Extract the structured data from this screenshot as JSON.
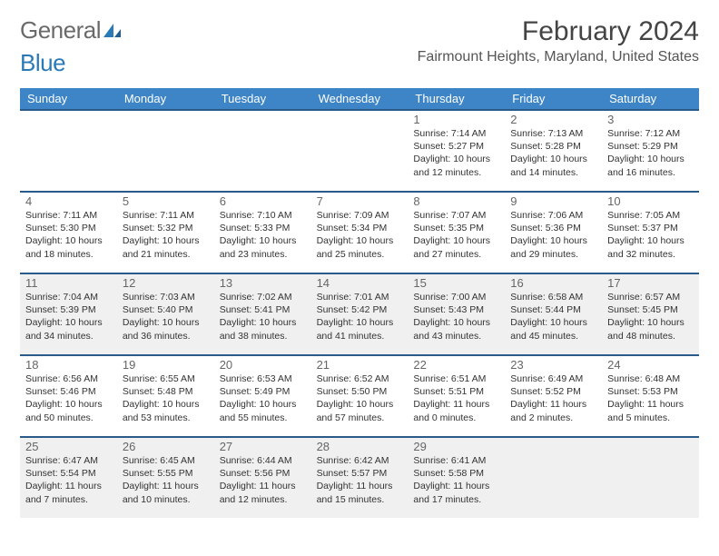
{
  "logo": {
    "text1": "General",
    "text2": "Blue"
  },
  "title": "February 2024",
  "location": "Fairmount Heights, Maryland, United States",
  "colors": {
    "header_bg": "#3d85c6",
    "week_border": "#2a5a8a",
    "shaded_bg": "#f0f0f0"
  },
  "day_headers": [
    "Sunday",
    "Monday",
    "Tuesday",
    "Wednesday",
    "Thursday",
    "Friday",
    "Saturday"
  ],
  "weeks": [
    {
      "shaded": false,
      "cells": [
        null,
        null,
        null,
        null,
        {
          "n": "1",
          "sr": "7:14 AM",
          "ss": "5:27 PM",
          "dl": "10 hours and 12 minutes."
        },
        {
          "n": "2",
          "sr": "7:13 AM",
          "ss": "5:28 PM",
          "dl": "10 hours and 14 minutes."
        },
        {
          "n": "3",
          "sr": "7:12 AM",
          "ss": "5:29 PM",
          "dl": "10 hours and 16 minutes."
        }
      ]
    },
    {
      "shaded": false,
      "cells": [
        {
          "n": "4",
          "sr": "7:11 AM",
          "ss": "5:30 PM",
          "dl": "10 hours and 18 minutes."
        },
        {
          "n": "5",
          "sr": "7:11 AM",
          "ss": "5:32 PM",
          "dl": "10 hours and 21 minutes."
        },
        {
          "n": "6",
          "sr": "7:10 AM",
          "ss": "5:33 PM",
          "dl": "10 hours and 23 minutes."
        },
        {
          "n": "7",
          "sr": "7:09 AM",
          "ss": "5:34 PM",
          "dl": "10 hours and 25 minutes."
        },
        {
          "n": "8",
          "sr": "7:07 AM",
          "ss": "5:35 PM",
          "dl": "10 hours and 27 minutes."
        },
        {
          "n": "9",
          "sr": "7:06 AM",
          "ss": "5:36 PM",
          "dl": "10 hours and 29 minutes."
        },
        {
          "n": "10",
          "sr": "7:05 AM",
          "ss": "5:37 PM",
          "dl": "10 hours and 32 minutes."
        }
      ]
    },
    {
      "shaded": true,
      "cells": [
        {
          "n": "11",
          "sr": "7:04 AM",
          "ss": "5:39 PM",
          "dl": "10 hours and 34 minutes."
        },
        {
          "n": "12",
          "sr": "7:03 AM",
          "ss": "5:40 PM",
          "dl": "10 hours and 36 minutes."
        },
        {
          "n": "13",
          "sr": "7:02 AM",
          "ss": "5:41 PM",
          "dl": "10 hours and 38 minutes."
        },
        {
          "n": "14",
          "sr": "7:01 AM",
          "ss": "5:42 PM",
          "dl": "10 hours and 41 minutes."
        },
        {
          "n": "15",
          "sr": "7:00 AM",
          "ss": "5:43 PM",
          "dl": "10 hours and 43 minutes."
        },
        {
          "n": "16",
          "sr": "6:58 AM",
          "ss": "5:44 PM",
          "dl": "10 hours and 45 minutes."
        },
        {
          "n": "17",
          "sr": "6:57 AM",
          "ss": "5:45 PM",
          "dl": "10 hours and 48 minutes."
        }
      ]
    },
    {
      "shaded": false,
      "cells": [
        {
          "n": "18",
          "sr": "6:56 AM",
          "ss": "5:46 PM",
          "dl": "10 hours and 50 minutes."
        },
        {
          "n": "19",
          "sr": "6:55 AM",
          "ss": "5:48 PM",
          "dl": "10 hours and 53 minutes."
        },
        {
          "n": "20",
          "sr": "6:53 AM",
          "ss": "5:49 PM",
          "dl": "10 hours and 55 minutes."
        },
        {
          "n": "21",
          "sr": "6:52 AM",
          "ss": "5:50 PM",
          "dl": "10 hours and 57 minutes."
        },
        {
          "n": "22",
          "sr": "6:51 AM",
          "ss": "5:51 PM",
          "dl": "11 hours and 0 minutes."
        },
        {
          "n": "23",
          "sr": "6:49 AM",
          "ss": "5:52 PM",
          "dl": "11 hours and 2 minutes."
        },
        {
          "n": "24",
          "sr": "6:48 AM",
          "ss": "5:53 PM",
          "dl": "11 hours and 5 minutes."
        }
      ]
    },
    {
      "shaded": true,
      "cells": [
        {
          "n": "25",
          "sr": "6:47 AM",
          "ss": "5:54 PM",
          "dl": "11 hours and 7 minutes."
        },
        {
          "n": "26",
          "sr": "6:45 AM",
          "ss": "5:55 PM",
          "dl": "11 hours and 10 minutes."
        },
        {
          "n": "27",
          "sr": "6:44 AM",
          "ss": "5:56 PM",
          "dl": "11 hours and 12 minutes."
        },
        {
          "n": "28",
          "sr": "6:42 AM",
          "ss": "5:57 PM",
          "dl": "11 hours and 15 minutes."
        },
        {
          "n": "29",
          "sr": "6:41 AM",
          "ss": "5:58 PM",
          "dl": "11 hours and 17 minutes."
        },
        null,
        null
      ]
    }
  ]
}
